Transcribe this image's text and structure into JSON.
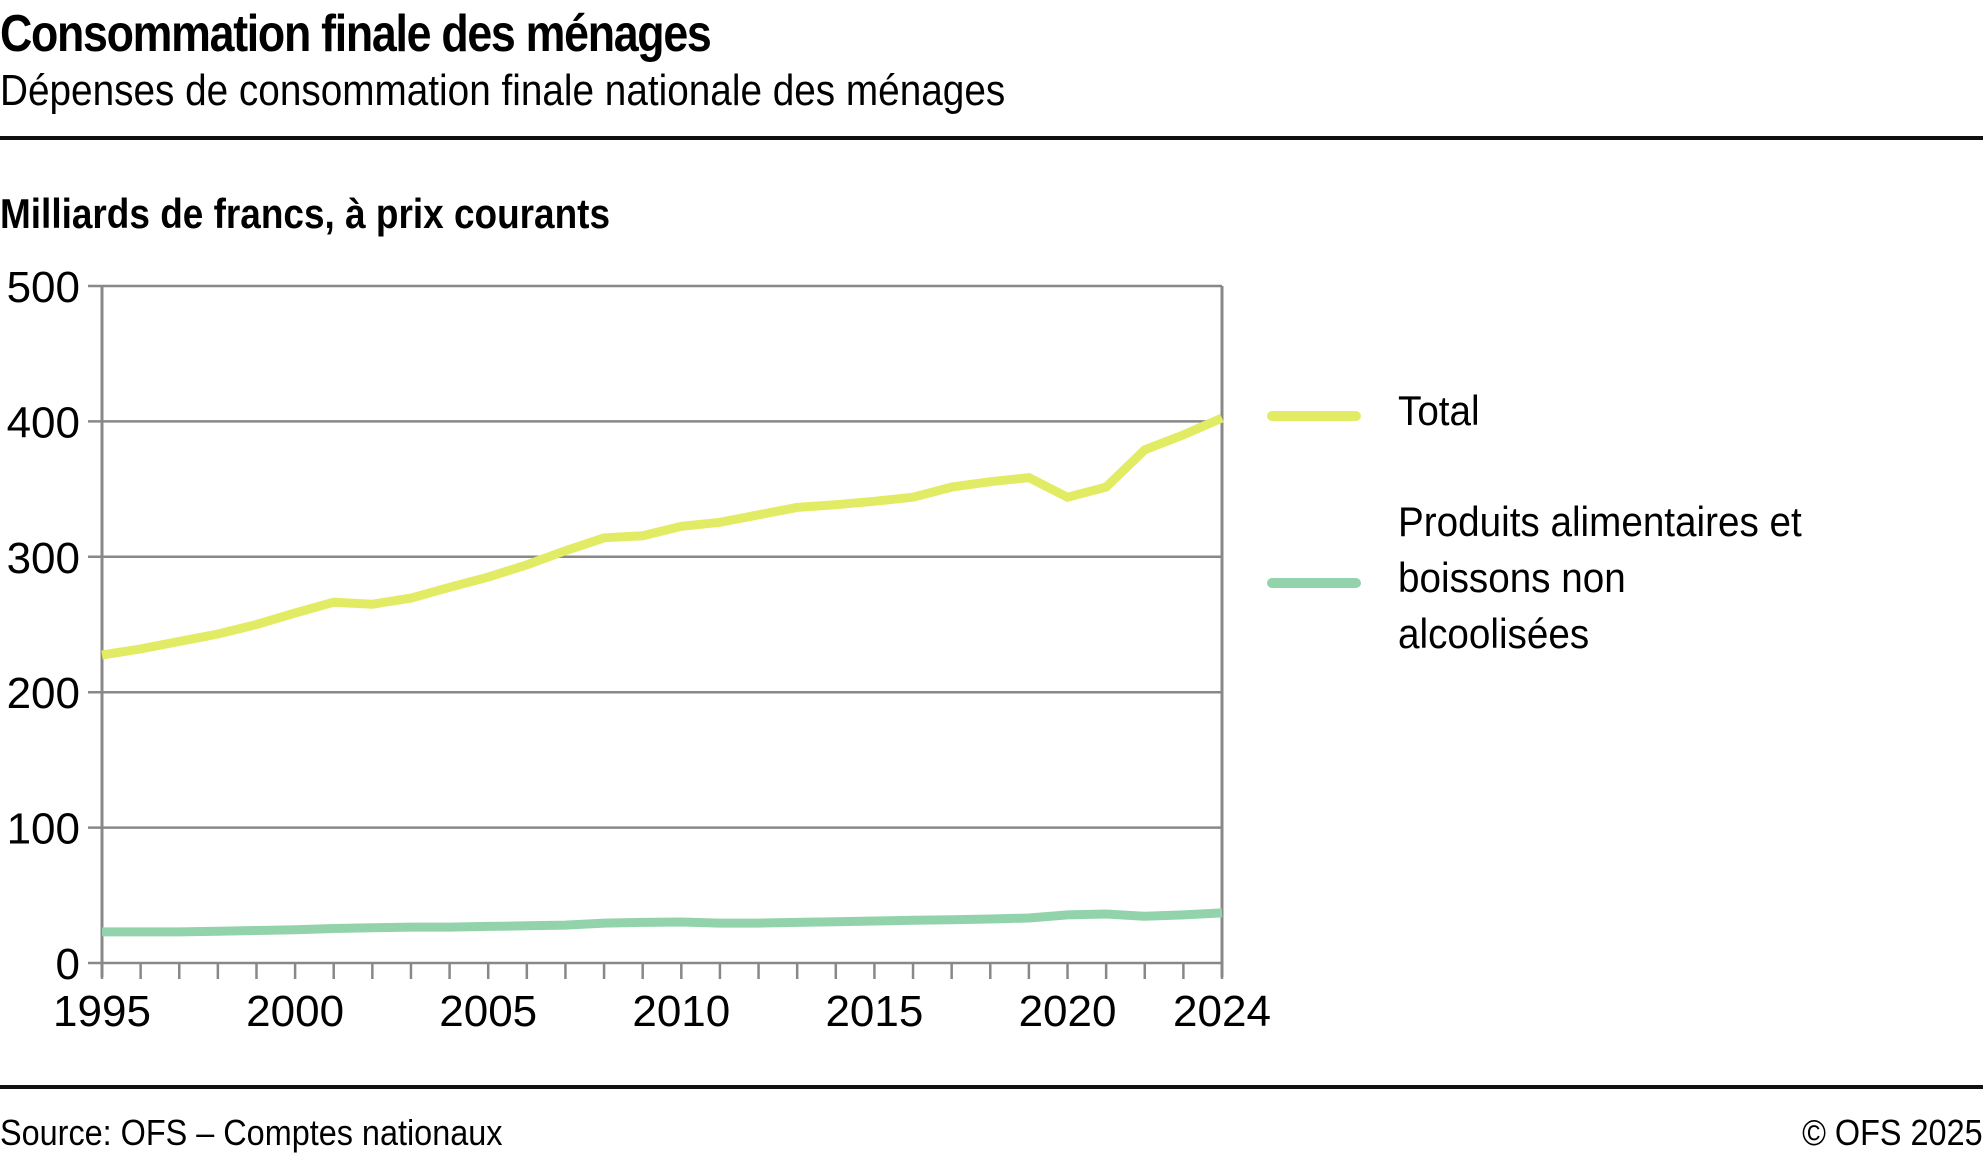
{
  "header": {
    "title": "Consommation finale des ménages",
    "subtitle": "Dépenses de consommation finale nationale des ménages"
  },
  "footer": {
    "source": "Source: OFS – Comptes nationaux",
    "copyright": "© OFS 2025"
  },
  "chart_data": {
    "type": "line",
    "title": "Consommation finale des ménages",
    "subtitle": "Dépenses de consommation finale nationale des ménages",
    "ylabel": "Milliards de francs, à prix courants",
    "xlabel": "",
    "ylim": [
      0,
      500
    ],
    "xlim": [
      1995,
      2024
    ],
    "yticks": [
      0,
      100,
      200,
      300,
      400,
      500
    ],
    "ytick_labels": [
      "0",
      "100",
      "200",
      "300",
      "400",
      "500"
    ],
    "xticks": [
      1995,
      2000,
      2005,
      2010,
      2015,
      2020,
      2024
    ],
    "xtick_labels": [
      "1995",
      "2000",
      "2005",
      "2010",
      "2015",
      "2020",
      "2024"
    ],
    "grid": true,
    "legend_position": "right",
    "x": [
      1995,
      1996,
      1997,
      1998,
      1999,
      2000,
      2001,
      2002,
      2003,
      2004,
      2005,
      2006,
      2007,
      2008,
      2009,
      2010,
      2011,
      2012,
      2013,
      2014,
      2015,
      2016,
      2017,
      2018,
      2019,
      2020,
      2021,
      2022,
      2023,
      2024
    ],
    "series": [
      {
        "name": "Total",
        "color": "#e1ec64",
        "values": [
          227.5,
          232,
          237.5,
          243,
          250,
          258.5,
          266.5,
          265,
          269.5,
          277.5,
          285,
          294,
          304.5,
          314,
          315.5,
          322.5,
          325.5,
          331,
          336.5,
          338.5,
          341,
          344,
          351.5,
          355.5,
          358.5,
          344,
          351.5,
          379,
          390,
          402.5
        ]
      },
      {
        "name": "Produits alimentaires et boissons non alcoolisées",
        "label_lines": [
          "Produits alimentaires et",
          "boissons non",
          "alcoolisées"
        ],
        "color": "#92d3ab",
        "values": [
          23,
          23,
          23,
          23.5,
          24,
          24.5,
          25.5,
          26,
          26.5,
          26.5,
          27,
          27.5,
          28,
          29.5,
          30,
          30.3,
          29.5,
          29.5,
          30,
          30.5,
          31,
          31.5,
          32,
          32.5,
          33.2,
          35.5,
          36.2,
          34.5,
          35.5,
          37
        ]
      }
    ]
  }
}
